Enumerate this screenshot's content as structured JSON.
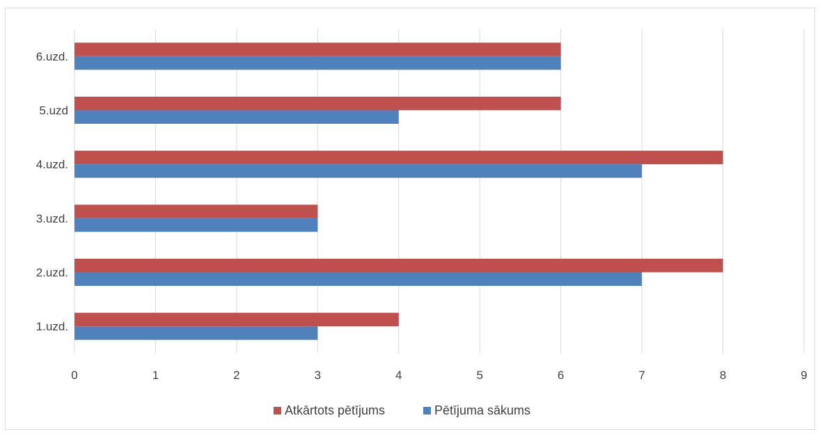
{
  "chart_data": {
    "type": "bar",
    "orientation": "horizontal",
    "categories": [
      "1.uzd.",
      "2.uzd.",
      "3.uzd.",
      "4.uzd.",
      "5.uzd",
      "6.uzd."
    ],
    "series": [
      {
        "name": "Pētījuma sākums",
        "values": [
          3,
          7,
          3,
          7,
          4,
          6
        ],
        "color": "#4f81bd"
      },
      {
        "name": "Atkārtots pētījums",
        "values": [
          4,
          8,
          3,
          8,
          6,
          6
        ],
        "color": "#c0504d"
      }
    ],
    "xlim": [
      0,
      9
    ],
    "x_ticks": [
      "0",
      "1",
      "2",
      "3",
      "4",
      "5",
      "6",
      "7",
      "8",
      "9"
    ],
    "grid": "vertical",
    "legend": {
      "position": "bottom",
      "entries": [
        "Atkārtots pētījums",
        "Pētījuma sākums"
      ]
    },
    "title": "",
    "xlabel": "",
    "ylabel": ""
  }
}
